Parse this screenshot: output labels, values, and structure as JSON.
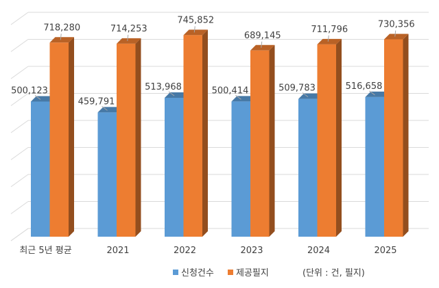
{
  "chart_data": {
    "type": "bar",
    "style": "3d-clustered-column",
    "title": "",
    "xlabel": "",
    "ylabel": "",
    "unit_note": "(단위 : 건, 필지)",
    "categories": [
      "최근 5년 평균",
      "2021",
      "2022",
      "2023",
      "2024",
      "2025"
    ],
    "series": [
      {
        "name": "신청건수",
        "color": "#5b9bd5",
        "values": [
          500123,
          459791,
          513968,
          500414,
          509783,
          516658
        ],
        "labels": [
          "500,123",
          "459,791",
          "513,968",
          "500,414",
          "509,783",
          "516,658"
        ]
      },
      {
        "name": "제공필지",
        "color": "#ed7d31",
        "values": [
          718280,
          714253,
          745852,
          689145,
          711796,
          730356
        ],
        "labels": [
          "718,280",
          "714,253",
          "745,852",
          "689,145",
          "711,796",
          "730,356"
        ]
      }
    ],
    "ylim": [
      0,
      800000
    ],
    "grid": true,
    "gridline_step": 100000,
    "y_tick_labels_visible": false,
    "legend_position": "bottom"
  },
  "legend": {
    "items": [
      {
        "label": "신청건수",
        "color": "#5b9bd5"
      },
      {
        "label": "제공필지",
        "color": "#ed7d31"
      }
    ],
    "unit": "(단위 : 건, 필지)"
  }
}
